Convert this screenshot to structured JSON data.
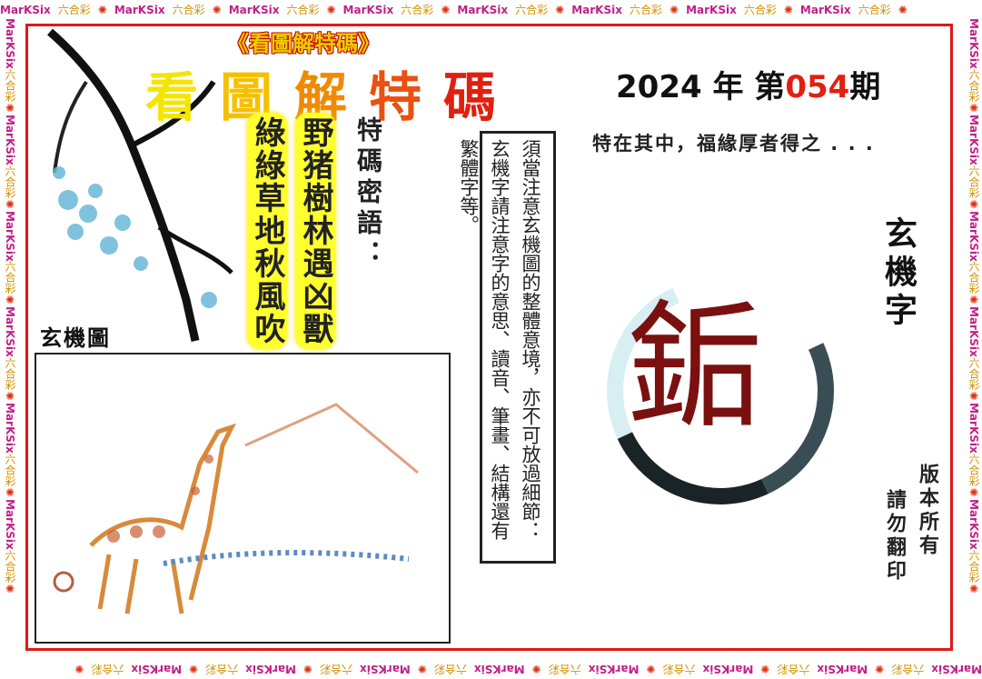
{
  "border": {
    "marksix": "MarKSix",
    "liuhecai": "六合彩",
    "flower_icon": "flower-icon",
    "frame_color": "#e01818"
  },
  "header": {
    "subtitle": "《看圖解特碼》",
    "title": [
      "看",
      "圖",
      "解",
      "特",
      "碼"
    ],
    "year": "2024",
    "year_unit": "年",
    "issue_prefix": "第",
    "issue_number": "054",
    "issue_suffix": "期"
  },
  "secret": {
    "label": "特碼密語：",
    "lines": [
      "野猪樹林遇凶獸",
      "綠綠草地秋風吹"
    ]
  },
  "picture": {
    "label": "玄機圖"
  },
  "hint": {
    "text": "須當注意玄機圖的整體意境，亦不可放過細節：玄機字請注意字的意思、讀音、筆畫、結構還有繁體字等。"
  },
  "motto": "特在其中，福緣厚者得之 . . .",
  "keyword": {
    "label": "玄機字",
    "char": "銗",
    "color": "#7a1010"
  },
  "copyright": {
    "line1": "版本所有",
    "line2": "請勿翻印"
  }
}
